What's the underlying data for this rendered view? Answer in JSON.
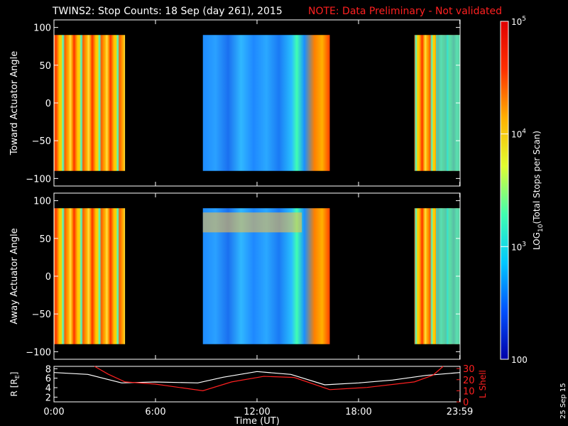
{
  "header": {
    "title": "TWINS2: Stop Counts: 18 Sep (day 261), 2015",
    "note": "NOTE: Data Preliminary - Not validated"
  },
  "side_label": "25 Sep 15",
  "chart_data": [
    {
      "type": "heatmap",
      "ylabel": "Toward Actuator Angle",
      "yticks": [
        "100",
        "50",
        "0",
        "−50",
        "−100"
      ],
      "ytick_values": [
        100,
        50,
        0,
        -50,
        -100
      ],
      "ylim": [
        -110,
        110
      ],
      "angle_range": [
        -90,
        90
      ],
      "xlim_hours": [
        0,
        24
      ],
      "data_segments_hours": [
        [
          0,
          4.2
        ],
        [
          8.8,
          16.3
        ],
        [
          21.3,
          24
        ]
      ],
      "log_scale": true
    },
    {
      "type": "heatmap",
      "ylabel": "Away Actuator Angle",
      "yticks": [
        "100",
        "50",
        "0",
        "−50",
        "−100"
      ],
      "ytick_values": [
        100,
        50,
        0,
        -50,
        -100
      ],
      "ylim": [
        -110,
        110
      ],
      "angle_range": [
        -90,
        90
      ],
      "xlim_hours": [
        0,
        24
      ],
      "data_segments_hours": [
        [
          0,
          4.2
        ],
        [
          8.8,
          16.3
        ],
        [
          21.3,
          24
        ]
      ],
      "log_scale": true
    },
    {
      "type": "line",
      "ylabel": "R [R",
      "ylabel_sub": "E",
      "ylabel_end": "]",
      "y2label": "L Shell",
      "xlabel": "Time (UT)",
      "xticks": [
        "0:00",
        "6:00",
        "12:00",
        "18:00",
        "23:59"
      ],
      "xtick_hours": [
        0,
        6,
        12,
        18,
        23.98
      ],
      "yticks": [
        "8",
        "6",
        "4",
        "2"
      ],
      "ytick_values": [
        8,
        6,
        4,
        2
      ],
      "ylim": [
        1,
        8.5
      ],
      "y2ticks": [
        "30",
        "20",
        "10",
        "0"
      ],
      "y2tick_values": [
        30,
        20,
        10,
        0
      ],
      "y2lim": [
        0,
        32
      ],
      "series": [
        {
          "color": "#ffffff",
          "axis": "R",
          "x": [
            0,
            2,
            4,
            6,
            8.5,
            10,
            12,
            14,
            16,
            18,
            20,
            22,
            24
          ],
          "y": [
            7.2,
            6.8,
            5.0,
            5.2,
            5.0,
            6.2,
            7.4,
            6.8,
            4.6,
            5.0,
            5.6,
            6.6,
            7.2
          ]
        },
        {
          "color": "#ff2020",
          "axis": "L",
          "x": [
            2.4,
            3.2,
            4.2,
            6.0,
            8.8,
            10.5,
            12.4,
            14.2,
            16.3,
            18.5,
            21.3,
            22.4,
            23.0
          ],
          "y": [
            32,
            25,
            18,
            16,
            10,
            18,
            23,
            22,
            11,
            13,
            18,
            24,
            32
          ]
        }
      ]
    }
  ],
  "colorbar": {
    "label": "LOG",
    "label_sub": "10",
    "label_rest": "(Total Stops per Scan)",
    "ticks": [
      "10",
      "10",
      "10",
      "100"
    ],
    "tick_exp": [
      "5",
      "4",
      "3",
      ""
    ],
    "tick_values": [
      100000,
      10000,
      1000,
      100
    ],
    "range": [
      100,
      100000
    ],
    "colors": [
      "#0000a8",
      "#0050ff",
      "#00c8ff",
      "#40ffb0",
      "#e0ff30",
      "#ffb000",
      "#ff3000",
      "#e00000"
    ]
  }
}
